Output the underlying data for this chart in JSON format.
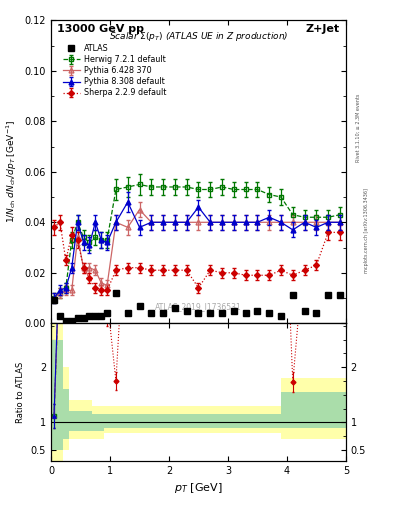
{
  "title_left": "13000 GeV pp",
  "title_right": "Z+Jet",
  "plot_title": "Scalar Σ(p_{T}) (ATLAS UE in Z production)",
  "ylabel_main": "1/N_{ch} dN_{ch}/dp_{T} [GeV⁻¹]",
  "ylabel_ratio": "Ratio to ATLAS",
  "xlabel": "p_{T} [GeV]",
  "watermark": "ATLAS_2019_I1736531",
  "right_label1": "Rivet 3.1.10; ≥ 2.3M events",
  "right_label2": "mcplots.cern.ch [arXiv:1306.3436]",
  "atlas_x": [
    0.05,
    0.15,
    0.25,
    0.35,
    0.45,
    0.55,
    0.65,
    0.75,
    0.85,
    0.95,
    1.1,
    1.3,
    1.5,
    1.7,
    1.9,
    2.1,
    2.3,
    2.5,
    2.7,
    2.9,
    3.1,
    3.3,
    3.5,
    3.7,
    3.9,
    4.1,
    4.3,
    4.5,
    4.7,
    4.9
  ],
  "atlas_y": [
    0.009,
    0.003,
    0.001,
    0.001,
    0.002,
    0.002,
    0.003,
    0.003,
    0.003,
    0.004,
    0.012,
    0.004,
    0.007,
    0.004,
    0.004,
    0.006,
    0.005,
    0.004,
    0.004,
    0.004,
    0.005,
    0.004,
    0.005,
    0.004,
    0.003,
    0.011,
    0.005,
    0.004,
    0.011,
    0.011
  ],
  "herwig_x": [
    0.05,
    0.15,
    0.25,
    0.35,
    0.45,
    0.55,
    0.65,
    0.75,
    0.85,
    0.95,
    1.1,
    1.3,
    1.5,
    1.7,
    1.9,
    2.1,
    2.3,
    2.5,
    2.7,
    2.9,
    3.1,
    3.3,
    3.5,
    3.7,
    3.9,
    4.1,
    4.3,
    4.5,
    4.7,
    4.9
  ],
  "herwig_y": [
    0.01,
    0.012,
    0.014,
    0.033,
    0.04,
    0.034,
    0.032,
    0.034,
    0.033,
    0.033,
    0.053,
    0.054,
    0.055,
    0.054,
    0.054,
    0.054,
    0.054,
    0.053,
    0.053,
    0.054,
    0.053,
    0.053,
    0.053,
    0.051,
    0.05,
    0.043,
    0.042,
    0.042,
    0.042,
    0.043
  ],
  "herwig_yerr": [
    0.002,
    0.002,
    0.002,
    0.003,
    0.003,
    0.003,
    0.003,
    0.003,
    0.003,
    0.003,
    0.004,
    0.004,
    0.004,
    0.003,
    0.003,
    0.003,
    0.003,
    0.003,
    0.003,
    0.003,
    0.003,
    0.003,
    0.003,
    0.003,
    0.003,
    0.003,
    0.003,
    0.003,
    0.003,
    0.003
  ],
  "pythia6_x": [
    0.05,
    0.15,
    0.25,
    0.35,
    0.45,
    0.55,
    0.65,
    0.75,
    0.85,
    0.95,
    1.1,
    1.3,
    1.5,
    1.7,
    1.9,
    2.1,
    2.3,
    2.5,
    2.7,
    2.9,
    3.1,
    3.3,
    3.5,
    3.7,
    3.9,
    4.1,
    4.3,
    4.5,
    4.7,
    4.9
  ],
  "pythia6_y": [
    0.01,
    0.012,
    0.013,
    0.013,
    0.034,
    0.022,
    0.022,
    0.021,
    0.016,
    0.015,
    0.04,
    0.038,
    0.045,
    0.04,
    0.04,
    0.04,
    0.04,
    0.04,
    0.04,
    0.04,
    0.04,
    0.04,
    0.04,
    0.04,
    0.04,
    0.04,
    0.04,
    0.04,
    0.04,
    0.04
  ],
  "pythia6_yerr": [
    0.002,
    0.002,
    0.002,
    0.002,
    0.003,
    0.002,
    0.002,
    0.002,
    0.002,
    0.002,
    0.003,
    0.003,
    0.003,
    0.003,
    0.003,
    0.003,
    0.003,
    0.003,
    0.003,
    0.003,
    0.003,
    0.003,
    0.003,
    0.003,
    0.003,
    0.003,
    0.003,
    0.003,
    0.003,
    0.003
  ],
  "pythia8_x": [
    0.05,
    0.15,
    0.25,
    0.35,
    0.45,
    0.55,
    0.65,
    0.75,
    0.85,
    0.95,
    1.1,
    1.3,
    1.5,
    1.7,
    1.9,
    2.1,
    2.3,
    2.5,
    2.7,
    2.9,
    3.1,
    3.3,
    3.5,
    3.7,
    3.9,
    4.1,
    4.3,
    4.5,
    4.7,
    4.9
  ],
  "pythia8_y": [
    0.01,
    0.013,
    0.014,
    0.022,
    0.04,
    0.032,
    0.031,
    0.04,
    0.033,
    0.032,
    0.04,
    0.048,
    0.038,
    0.04,
    0.04,
    0.04,
    0.04,
    0.046,
    0.04,
    0.04,
    0.04,
    0.04,
    0.04,
    0.042,
    0.04,
    0.037,
    0.04,
    0.038,
    0.04,
    0.04
  ],
  "pythia8_yerr": [
    0.002,
    0.002,
    0.002,
    0.002,
    0.003,
    0.003,
    0.003,
    0.003,
    0.003,
    0.003,
    0.003,
    0.004,
    0.003,
    0.003,
    0.003,
    0.003,
    0.003,
    0.003,
    0.003,
    0.003,
    0.003,
    0.003,
    0.003,
    0.003,
    0.003,
    0.003,
    0.003,
    0.003,
    0.003,
    0.003
  ],
  "sherpa_x": [
    0.05,
    0.15,
    0.25,
    0.35,
    0.45,
    0.55,
    0.65,
    0.75,
    0.85,
    0.95,
    1.1,
    1.3,
    1.5,
    1.7,
    1.9,
    2.1,
    2.3,
    2.5,
    2.7,
    2.9,
    3.1,
    3.3,
    3.5,
    3.7,
    3.9,
    4.1,
    4.3,
    4.5,
    4.7,
    4.9
  ],
  "sherpa_y": [
    0.038,
    0.04,
    0.025,
    0.035,
    0.033,
    0.022,
    0.018,
    0.014,
    0.013,
    0.013,
    0.021,
    0.022,
    0.022,
    0.021,
    0.021,
    0.021,
    0.021,
    0.014,
    0.021,
    0.02,
    0.02,
    0.019,
    0.019,
    0.019,
    0.021,
    0.019,
    0.021,
    0.023,
    0.036,
    0.036
  ],
  "sherpa_yerr": [
    0.003,
    0.003,
    0.002,
    0.003,
    0.003,
    0.002,
    0.002,
    0.002,
    0.002,
    0.002,
    0.002,
    0.002,
    0.002,
    0.002,
    0.002,
    0.002,
    0.002,
    0.002,
    0.002,
    0.002,
    0.002,
    0.002,
    0.002,
    0.002,
    0.002,
    0.002,
    0.002,
    0.002,
    0.003,
    0.003
  ],
  "band_x_edges": [
    0.0,
    0.1,
    0.2,
    0.3,
    0.5,
    0.7,
    0.9,
    1.1,
    1.5,
    1.9,
    2.3,
    2.7,
    3.1,
    3.5,
    3.9,
    4.3,
    4.7,
    5.0
  ],
  "band_green_lo": [
    0.5,
    0.5,
    0.7,
    0.85,
    0.85,
    0.85,
    0.9,
    0.9,
    0.9,
    0.9,
    0.9,
    0.9,
    0.9,
    0.9,
    0.9,
    0.9,
    0.9
  ],
  "band_green_hi": [
    2.5,
    2.5,
    1.6,
    1.2,
    1.2,
    1.15,
    1.15,
    1.15,
    1.15,
    1.15,
    1.15,
    1.15,
    1.15,
    1.15,
    1.55,
    1.55,
    1.55
  ],
  "band_yellow_lo": [
    0.3,
    0.3,
    0.5,
    0.7,
    0.7,
    0.7,
    0.8,
    0.8,
    0.8,
    0.8,
    0.8,
    0.8,
    0.8,
    0.8,
    0.7,
    0.7,
    0.7
  ],
  "band_yellow_hi": [
    2.8,
    2.8,
    2.0,
    1.4,
    1.4,
    1.3,
    1.3,
    1.3,
    1.3,
    1.3,
    1.3,
    1.3,
    1.3,
    1.3,
    1.8,
    1.8,
    1.8
  ],
  "color_atlas": "#000000",
  "color_herwig": "#007700",
  "color_pythia6": "#cc6666",
  "color_pythia8": "#0000cc",
  "color_sherpa": "#cc0000",
  "color_green_band": "#aaddaa",
  "color_yellow_band": "#ffffaa",
  "xlim": [
    0,
    5.0
  ],
  "ylim_main": [
    0,
    0.12
  ],
  "ylim_ratio": [
    0.3,
    2.8
  ]
}
